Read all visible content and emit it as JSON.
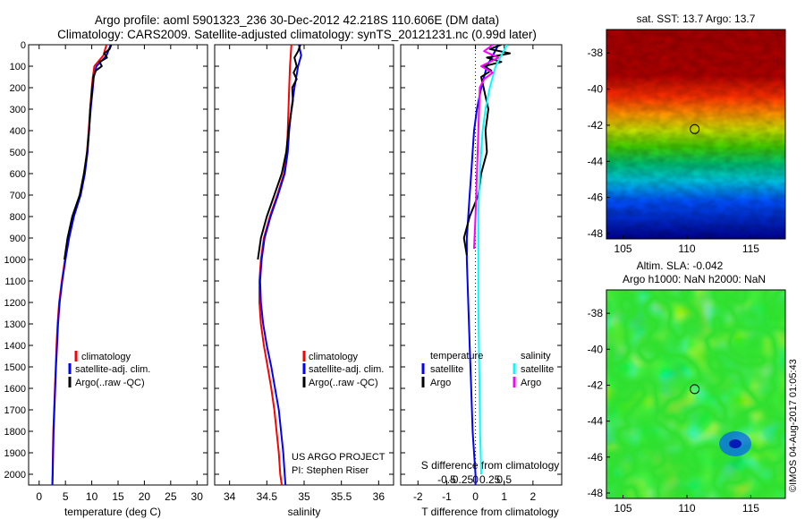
{
  "header": {
    "line1": "Argo profile: aoml 5901323_236 30-Dec-2012 42.218S 110.606E (DM data)",
    "line2": "Climatology: CARS2009. Satellite-adjusted climatology: synTS_20121231.nc (0.99d later)"
  },
  "credit": {
    "project": "US ARGO PROJECT",
    "pi": "PI: Stephen Riser",
    "imos": "©IMOS 04-Aug-2017 01:05:43"
  },
  "colors": {
    "climatology": "#ff0000",
    "satellite": "#0000ff",
    "argo": "#000000",
    "sal_satellite": "#00ffff",
    "sal_argo": "#ff00ff",
    "marker": "#000000"
  },
  "chart_data": [
    {
      "type": "line",
      "id": "temperature",
      "xlabel": "temperature (deg C)",
      "xlim": [
        -2,
        32
      ],
      "ylim": [
        0,
        2050
      ],
      "y_inverted": true,
      "xticks": [
        0,
        5,
        10,
        15,
        20,
        25,
        30
      ],
      "yticks": [
        0,
        100,
        200,
        300,
        400,
        500,
        600,
        700,
        800,
        900,
        1000,
        1100,
        1200,
        1300,
        1400,
        1500,
        1600,
        1700,
        1800,
        1900,
        2000
      ],
      "legend": {
        "position": "bottom-center",
        "entries": [
          "climatology",
          "satellite-adj. clim.",
          "Argo(..raw -QC)"
        ]
      },
      "series": [
        {
          "name": "climatology",
          "color": "#ff0000",
          "x": [
            12.8,
            12.2,
            10.5,
            10.2,
            10.0,
            9.7,
            9.4,
            9.1,
            8.6,
            7.8,
            6.5,
            5.6,
            4.9,
            4.3,
            3.8,
            3.5,
            3.3,
            3.15,
            3.0,
            2.85,
            2.7,
            2.6,
            2.55,
            2.5
          ],
          "y": [
            0,
            50,
            100,
            150,
            200,
            300,
            400,
            500,
            600,
            700,
            800,
            900,
            1000,
            1100,
            1200,
            1300,
            1400,
            1500,
            1600,
            1700,
            1800,
            1900,
            2000,
            2050
          ]
        },
        {
          "name": "satellite-adj. clim.",
          "color": "#0000ff",
          "x": [
            13.6,
            12.8,
            10.9,
            10.4,
            10.2,
            9.8,
            9.5,
            9.2,
            8.7,
            7.9,
            6.6,
            5.7,
            5.0,
            4.4,
            3.9,
            3.6,
            3.4,
            3.2,
            3.05,
            2.9,
            2.75,
            2.65,
            2.58,
            2.53
          ],
          "y": [
            0,
            50,
            100,
            150,
            200,
            300,
            400,
            500,
            600,
            700,
            800,
            900,
            1000,
            1100,
            1200,
            1300,
            1400,
            1500,
            1600,
            1700,
            1800,
            1900,
            2000,
            2050
          ]
        },
        {
          "name": "Argo(..raw -QC)",
          "color": "#000000",
          "x": [
            13.7,
            13.4,
            12.4,
            12.9,
            11.5,
            11.9,
            10.8,
            10.3,
            10.1,
            9.7,
            9.5,
            9.1,
            8.5,
            7.7,
            6.3,
            5.4,
            4.8
          ],
          "y": [
            0,
            20,
            40,
            60,
            80,
            100,
            120,
            150,
            200,
            300,
            400,
            500,
            600,
            700,
            800,
            900,
            1000
          ]
        }
      ]
    },
    {
      "type": "line",
      "id": "salinity",
      "xlabel": "salinity",
      "xlim": [
        33.8,
        36.2
      ],
      "ylim": [
        0,
        2050
      ],
      "y_inverted": true,
      "xticks": [
        34,
        34.5,
        35,
        35.5,
        36
      ],
      "legend": {
        "position": "bottom-right",
        "entries": [
          "climatology",
          "satellite-adj. clim.",
          "Argo(..raw -QC)"
        ]
      },
      "series": [
        {
          "name": "climatology",
          "color": "#ff0000",
          "x": [
            34.83,
            34.82,
            34.81,
            34.8,
            34.79,
            34.78,
            34.77,
            34.73,
            34.64,
            34.54,
            34.46,
            34.42,
            34.4,
            34.4,
            34.42,
            34.46,
            34.51,
            34.56,
            34.6,
            34.63,
            34.66,
            34.68,
            34.7
          ],
          "y": [
            0,
            50,
            100,
            200,
            300,
            400,
            500,
            600,
            700,
            800,
            900,
            1000,
            1100,
            1200,
            1300,
            1400,
            1500,
            1600,
            1700,
            1800,
            1900,
            2000,
            2050
          ]
        },
        {
          "name": "satellite-adj. clim.",
          "color": "#0000ff",
          "x": [
            34.93,
            34.96,
            34.92,
            34.87,
            34.83,
            34.8,
            34.78,
            34.74,
            34.65,
            34.55,
            34.47,
            34.43,
            34.41,
            34.42,
            34.45,
            34.5,
            34.56,
            34.61,
            34.66,
            34.69,
            34.72,
            34.74,
            34.75
          ],
          "y": [
            0,
            50,
            100,
            200,
            300,
            400,
            500,
            600,
            700,
            800,
            900,
            1000,
            1100,
            1200,
            1300,
            1400,
            1500,
            1600,
            1700,
            1800,
            1900,
            2000,
            2050
          ]
        },
        {
          "name": "Argo(..raw -QC)",
          "color": "#000000",
          "x": [
            34.95,
            34.92,
            34.87,
            34.9,
            34.86,
            34.9,
            34.84,
            34.85,
            34.79,
            34.76,
            34.7,
            34.6,
            34.5,
            34.42,
            34.38
          ],
          "y": [
            0,
            30,
            60,
            100,
            130,
            160,
            200,
            260,
            400,
            500,
            600,
            700,
            800,
            900,
            1000
          ]
        }
      ]
    },
    {
      "type": "line",
      "id": "differences",
      "xlabel_bottom": "T difference from climatology",
      "xlabel_top": "S difference from climatology",
      "xlim_T": [
        -2.6,
        3.0
      ],
      "xticks_T": [
        -2,
        -1,
        0,
        1,
        2
      ],
      "xticks_S": [
        "-0.5",
        "-0.25",
        "0",
        "0.25",
        "0.5"
      ],
      "xticks_S_values": [
        -0.5,
        -0.25,
        0,
        0.25,
        0.5
      ],
      "S_to_T_scale": 4,
      "legend": {
        "position": "bottom-center",
        "groups": [
          {
            "title": "temperature",
            "entries": [
              "satellite",
              "Argo"
            ]
          },
          {
            "title": "salinity",
            "entries": [
              "satellite",
              "Argo"
            ]
          }
        ]
      },
      "series": [
        {
          "name": "temperature satellite",
          "color": "#0000ff",
          "x": [
            0.8,
            0.6,
            0.4,
            0.2,
            0.05,
            -0.05,
            -0.1,
            -0.15,
            -0.2,
            -0.25,
            -0.3,
            -0.3,
            -0.25,
            -0.2,
            -0.15,
            -0.1,
            -0.05,
            0.0,
            0.0
          ],
          "y": [
            0,
            50,
            100,
            200,
            300,
            400,
            500,
            600,
            700,
            800,
            900,
            1000,
            1200,
            1400,
            1600,
            1800,
            1900,
            2000,
            2050
          ]
        },
        {
          "name": "temperature Argo",
          "color": "#000000",
          "x": [
            0.9,
            0.5,
            1.2,
            0.4,
            0.9,
            0.3,
            0.55,
            0.2,
            0.45,
            0.35,
            0.4,
            0.2,
            0.1,
            -0.2,
            -0.4,
            -0.3
          ],
          "y": [
            0,
            20,
            40,
            60,
            80,
            100,
            120,
            150,
            300,
            400,
            500,
            600,
            700,
            800,
            900,
            980
          ]
        },
        {
          "name": "salinity satellite",
          "color": "#00ffff",
          "x": [
            1.1,
            0.9,
            0.7,
            0.5,
            0.35,
            0.25,
            0.2,
            0.15,
            0.12,
            0.1,
            0.1,
            0.1,
            0.1,
            0.12,
            0.14,
            0.16,
            0.18,
            0.2
          ],
          "y": [
            0,
            50,
            100,
            200,
            300,
            400,
            500,
            600,
            700,
            800,
            900,
            1000,
            1200,
            1400,
            1600,
            1800,
            1900,
            2000
          ]
        },
        {
          "name": "salinity Argo",
          "color": "#ff00ff",
          "x": [
            0.6,
            0.3,
            0.8,
            0.2,
            0.6,
            0.3,
            0.15,
            0.0,
            -0.05
          ],
          "y": [
            0,
            30,
            60,
            100,
            130,
            160,
            200,
            800,
            950
          ]
        }
      ]
    },
    {
      "type": "heatmap",
      "id": "sst-map",
      "title": "sat. SST: 13.7 Argo: 13.7",
      "xlim": [
        103.7,
        117.7
      ],
      "ylim": [
        -48.3,
        -36.7
      ],
      "xticks": [
        105,
        110,
        115
      ],
      "yticks": [
        -38,
        -40,
        -42,
        -44,
        -46,
        -48
      ],
      "marker": {
        "lon": 110.606,
        "lat": -42.218
      }
    },
    {
      "type": "heatmap",
      "id": "sla-map",
      "title_line1": "Altim. SLA: -0.042",
      "title_line2": "Argo h1000: NaN h2000: NaN",
      "xlim": [
        103.7,
        117.7
      ],
      "ylim": [
        -48.3,
        -36.7
      ],
      "xticks": [
        105,
        110,
        115
      ],
      "yticks": [
        -38,
        -40,
        -42,
        -44,
        -46,
        -48
      ],
      "marker": {
        "lon": 110.606,
        "lat": -42.218
      }
    }
  ]
}
